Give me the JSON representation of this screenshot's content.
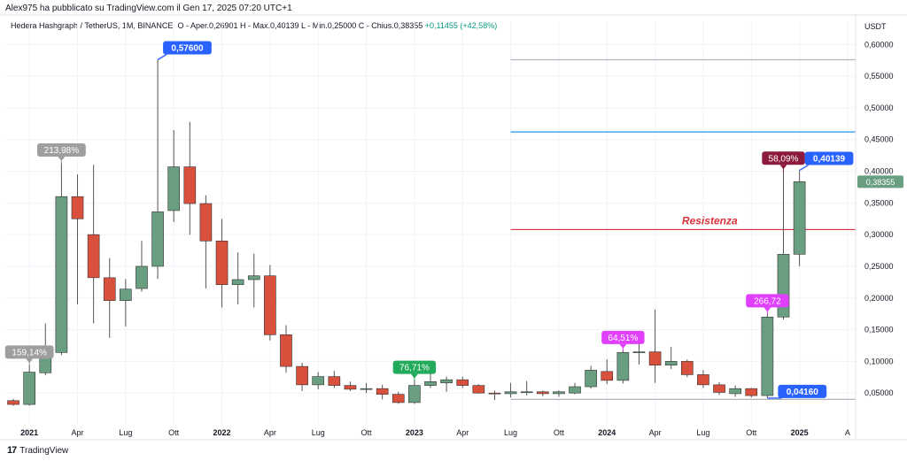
{
  "header": {
    "publisher": "Alex975 ha pubblicato su TradingView.com il Gen 17, 2025 07:20 UTC+1",
    "symbol": "Hedera Hashgraph / TetherUS, 1M, BINANCE",
    "ohlc": "O - Aper.0,26901  H - Max.0,40139  L - Min.0,25000  C - Chius.0,38355",
    "change": "+0,11455 (+42,58%)"
  },
  "footer": {
    "brand": "TradingView"
  },
  "colors": {
    "up": "#6a9e80",
    "down": "#d9503c",
    "wick": "#555555",
    "red_line": "#d9323c",
    "blue_line": "#2196f3",
    "grey_line": "#b2b5be"
  },
  "chart_data": {
    "type": "candlestick",
    "y_unit": "USDT",
    "ylim": [
      0.0,
      0.62
    ],
    "y_ticks": [
      "0,05000",
      "0,10000",
      "0,15000",
      "0,20000",
      "0,25000",
      "0,30000",
      "0,35000",
      "0,40000",
      "0,45000",
      "0,50000",
      "0,55000",
      "0,60000"
    ],
    "x_labels": [
      {
        "label": "2021",
        "bold": true,
        "date": "2021-01"
      },
      {
        "label": "Apr",
        "date": "2021-04"
      },
      {
        "label": "Lug",
        "date": "2021-07"
      },
      {
        "label": "Ott",
        "date": "2021-10"
      },
      {
        "label": "2022",
        "bold": true,
        "date": "2022-01"
      },
      {
        "label": "Apr",
        "date": "2022-04"
      },
      {
        "label": "Lug",
        "date": "2022-07"
      },
      {
        "label": "Ott",
        "date": "2022-10"
      },
      {
        "label": "2023",
        "bold": true,
        "date": "2023-01"
      },
      {
        "label": "Apr",
        "date": "2023-04"
      },
      {
        "label": "Lug",
        "date": "2023-07"
      },
      {
        "label": "Ott",
        "date": "2023-10"
      },
      {
        "label": "2024",
        "bold": true,
        "date": "2024-01"
      },
      {
        "label": "Apr",
        "date": "2024-04"
      },
      {
        "label": "Lug",
        "date": "2024-07"
      },
      {
        "label": "Ott",
        "date": "2024-10"
      },
      {
        "label": "2025",
        "bold": true,
        "date": "2025-01"
      },
      {
        "label": "A",
        "date": "2025-04"
      }
    ],
    "candles": [
      {
        "date": "2020-12",
        "o": 0.038,
        "h": 0.041,
        "l": 0.03,
        "c": 0.032
      },
      {
        "date": "2021-01",
        "o": 0.032,
        "h": 0.095,
        "l": 0.03,
        "c": 0.083
      },
      {
        "date": "2021-02",
        "o": 0.082,
        "h": 0.16,
        "l": 0.078,
        "c": 0.115
      },
      {
        "date": "2021-03",
        "o": 0.114,
        "h": 0.415,
        "l": 0.11,
        "c": 0.36
      },
      {
        "date": "2021-04",
        "o": 0.36,
        "h": 0.395,
        "l": 0.19,
        "c": 0.325
      },
      {
        "date": "2021-05",
        "o": 0.3,
        "h": 0.41,
        "l": 0.16,
        "c": 0.232
      },
      {
        "date": "2021-06",
        "o": 0.232,
        "h": 0.263,
        "l": 0.137,
        "c": 0.196
      },
      {
        "date": "2021-07",
        "o": 0.196,
        "h": 0.23,
        "l": 0.155,
        "c": 0.214
      },
      {
        "date": "2021-08",
        "o": 0.215,
        "h": 0.29,
        "l": 0.21,
        "c": 0.25
      },
      {
        "date": "2021-09",
        "o": 0.25,
        "h": 0.576,
        "l": 0.23,
        "c": 0.336
      },
      {
        "date": "2021-10",
        "o": 0.338,
        "h": 0.465,
        "l": 0.32,
        "c": 0.407
      },
      {
        "date": "2021-11",
        "o": 0.407,
        "h": 0.478,
        "l": 0.3,
        "c": 0.349
      },
      {
        "date": "2021-12",
        "o": 0.349,
        "h": 0.362,
        "l": 0.215,
        "c": 0.29
      },
      {
        "date": "2022-01",
        "o": 0.29,
        "h": 0.325,
        "l": 0.185,
        "c": 0.221
      },
      {
        "date": "2022-02",
        "o": 0.221,
        "h": 0.272,
        "l": 0.19,
        "c": 0.229
      },
      {
        "date": "2022-03",
        "o": 0.229,
        "h": 0.27,
        "l": 0.185,
        "c": 0.235
      },
      {
        "date": "2022-04",
        "o": 0.235,
        "h": 0.252,
        "l": 0.133,
        "c": 0.142
      },
      {
        "date": "2022-05",
        "o": 0.142,
        "h": 0.157,
        "l": 0.082,
        "c": 0.092
      },
      {
        "date": "2022-06",
        "o": 0.092,
        "h": 0.098,
        "l": 0.053,
        "c": 0.063
      },
      {
        "date": "2022-07",
        "o": 0.063,
        "h": 0.083,
        "l": 0.056,
        "c": 0.076
      },
      {
        "date": "2022-08",
        "o": 0.076,
        "h": 0.085,
        "l": 0.058,
        "c": 0.062
      },
      {
        "date": "2022-09",
        "o": 0.062,
        "h": 0.068,
        "l": 0.053,
        "c": 0.056
      },
      {
        "date": "2022-10",
        "o": 0.056,
        "h": 0.066,
        "l": 0.05,
        "c": 0.057
      },
      {
        "date": "2022-11",
        "o": 0.057,
        "h": 0.063,
        "l": 0.04,
        "c": 0.048
      },
      {
        "date": "2022-12",
        "o": 0.048,
        "h": 0.052,
        "l": 0.033,
        "c": 0.035
      },
      {
        "date": "2023-01",
        "o": 0.035,
        "h": 0.07,
        "l": 0.033,
        "c": 0.062
      },
      {
        "date": "2023-02",
        "o": 0.062,
        "h": 0.093,
        "l": 0.058,
        "c": 0.068
      },
      {
        "date": "2023-03",
        "o": 0.066,
        "h": 0.076,
        "l": 0.052,
        "c": 0.071
      },
      {
        "date": "2023-04",
        "o": 0.071,
        "h": 0.076,
        "l": 0.058,
        "c": 0.062
      },
      {
        "date": "2023-05",
        "o": 0.062,
        "h": 0.064,
        "l": 0.049,
        "c": 0.05
      },
      {
        "date": "2023-06",
        "o": 0.05,
        "h": 0.054,
        "l": 0.039,
        "c": 0.049
      },
      {
        "date": "2023-07",
        "o": 0.049,
        "h": 0.066,
        "l": 0.043,
        "c": 0.052
      },
      {
        "date": "2023-08",
        "o": 0.052,
        "h": 0.069,
        "l": 0.046,
        "c": 0.052
      },
      {
        "date": "2023-09",
        "o": 0.052,
        "h": 0.054,
        "l": 0.045,
        "c": 0.049
      },
      {
        "date": "2023-10",
        "o": 0.049,
        "h": 0.054,
        "l": 0.044,
        "c": 0.052
      },
      {
        "date": "2023-11",
        "o": 0.05,
        "h": 0.066,
        "l": 0.048,
        "c": 0.06
      },
      {
        "date": "2023-12",
        "o": 0.06,
        "h": 0.093,
        "l": 0.057,
        "c": 0.086
      },
      {
        "date": "2024-01",
        "o": 0.084,
        "h": 0.103,
        "l": 0.064,
        "c": 0.07
      },
      {
        "date": "2024-02",
        "o": 0.07,
        "h": 0.117,
        "l": 0.065,
        "c": 0.114
      },
      {
        "date": "2024-03",
        "o": 0.114,
        "h": 0.13,
        "l": 0.095,
        "c": 0.115
      },
      {
        "date": "2024-04",
        "o": 0.115,
        "h": 0.182,
        "l": 0.066,
        "c": 0.094
      },
      {
        "date": "2024-05",
        "o": 0.094,
        "h": 0.123,
        "l": 0.088,
        "c": 0.1
      },
      {
        "date": "2024-06",
        "o": 0.1,
        "h": 0.103,
        "l": 0.075,
        "c": 0.079
      },
      {
        "date": "2024-07",
        "o": 0.079,
        "h": 0.086,
        "l": 0.058,
        "c": 0.063
      },
      {
        "date": "2024-08",
        "o": 0.063,
        "h": 0.067,
        "l": 0.047,
        "c": 0.051
      },
      {
        "date": "2024-09",
        "o": 0.049,
        "h": 0.062,
        "l": 0.044,
        "c": 0.057
      },
      {
        "date": "2024-10",
        "o": 0.057,
        "h": 0.058,
        "l": 0.043,
        "c": 0.046
      },
      {
        "date": "2024-11",
        "o": 0.046,
        "h": 0.175,
        "l": 0.042,
        "c": 0.17
      },
      {
        "date": "2024-12",
        "o": 0.17,
        "h": 0.4,
        "l": 0.166,
        "c": 0.269
      },
      {
        "date": "2025-01",
        "o": 0.269,
        "h": 0.40139,
        "l": 0.25,
        "c": 0.38355
      }
    ],
    "hlines": [
      {
        "y": 0.576,
        "color": "#b2b5be",
        "start": "2023-07"
      },
      {
        "y": 0.462,
        "color": "#2196f3",
        "start": "2023-07"
      },
      {
        "y": 0.308,
        "color": "#d9323c",
        "start": "2023-07",
        "text": "Resistenza"
      },
      {
        "y": 0.04,
        "color": "#b2b5be",
        "start": "2023-07"
      }
    ],
    "callouts": [
      {
        "text": "159,14%",
        "date": "2021-01",
        "y": 0.093,
        "color": "#9e9e9e",
        "side": "above"
      },
      {
        "text": "213,98%",
        "date": "2021-03",
        "y": 0.412,
        "color": "#9e9e9e",
        "side": "above"
      },
      {
        "text": "0,57600",
        "date": "2021-09",
        "y": 0.576,
        "color": "#2962ff",
        "side": "upright"
      },
      {
        "text": "76,71%",
        "date": "2023-01",
        "y": 0.069,
        "color": "#22ab5a",
        "side": "above"
      },
      {
        "text": "64,51%",
        "date": "2024-02",
        "y": 0.116,
        "color": "#e040fb",
        "side": "above"
      },
      {
        "text": "266,72",
        "date": "2024-11",
        "y": 0.174,
        "color": "#e040fb",
        "side": "above"
      },
      {
        "text": "0,04160",
        "date": "2024-11",
        "y": 0.042,
        "color": "#2962ff",
        "side": "downright"
      },
      {
        "text": "58,09%",
        "date": "2024-12",
        "y": 0.399,
        "color": "#8b1a3c",
        "side": "above"
      },
      {
        "text": "0,40139",
        "date": "2025-01",
        "y": 0.40139,
        "color": "#2962ff",
        "side": "upright"
      }
    ],
    "price_tags": [
      {
        "text": "0,38355",
        "y": 0.38355,
        "color": "#6a9e80"
      }
    ]
  }
}
